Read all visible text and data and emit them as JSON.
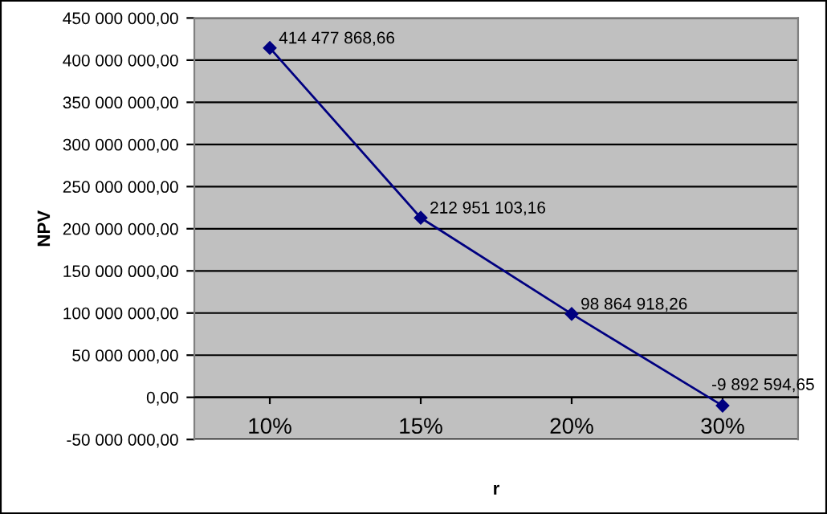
{
  "chart_data": {
    "type": "line",
    "xlabel": "r",
    "ylabel": "NPV",
    "categories": [
      "10%",
      "15%",
      "20%",
      "30%"
    ],
    "series": [
      {
        "color": "#000080",
        "values": [
          414477868.66,
          212951103.16,
          98864918.26,
          -9892594.65
        ],
        "value_labels": [
          "414 477 868,66",
          "212 951 103,16",
          "98 864 918,26",
          "-9 892 594,65"
        ]
      }
    ],
    "ylim": [
      -50000000,
      450000000
    ],
    "yticks": [
      {
        "value": -50000000,
        "label": "-50 000 000,00"
      },
      {
        "value": 0,
        "label": "0,00"
      },
      {
        "value": 50000000,
        "label": "50 000 000,00"
      },
      {
        "value": 100000000,
        "label": "100 000 000,00"
      },
      {
        "value": 150000000,
        "label": "150 000 000,00"
      },
      {
        "value": 200000000,
        "label": "200 000 000,00"
      },
      {
        "value": 250000000,
        "label": "250 000 000,00"
      },
      {
        "value": 300000000,
        "label": "300 000 000,00"
      },
      {
        "value": 350000000,
        "label": "350 000 000,00"
      },
      {
        "value": 400000000,
        "label": "400 000 000,00"
      },
      {
        "value": 450000000,
        "label": "450 000 000,00"
      }
    ],
    "grid": "y",
    "marker": "diamond",
    "line_style": "solid",
    "legend": false
  }
}
